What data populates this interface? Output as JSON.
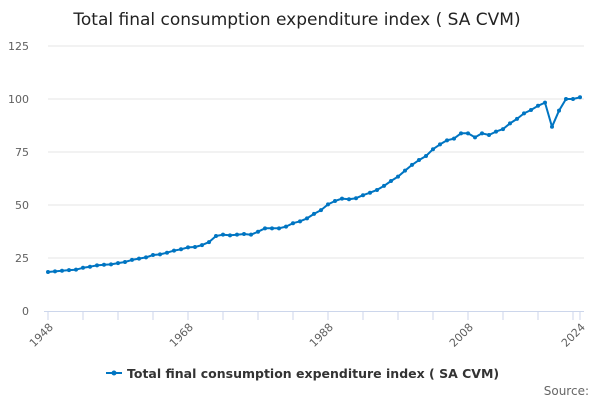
{
  "chart_data": {
    "type": "line",
    "title": "Total final consumption expenditure index ( SA CVM)",
    "xlabel": "",
    "ylabel": "",
    "ylim": [
      0,
      125
    ],
    "xlim": [
      1948,
      2024
    ],
    "yticks": [
      0,
      25,
      50,
      75,
      100,
      125
    ],
    "xtick_labels": [
      "1948",
      "1968",
      "1988",
      "2008",
      "2024"
    ],
    "grid": "horizontal",
    "legend_position": "bottom",
    "series_color": "#0075c2",
    "x": [
      1948,
      1949,
      1950,
      1951,
      1952,
      1953,
      1954,
      1955,
      1956,
      1957,
      1958,
      1959,
      1960,
      1961,
      1962,
      1963,
      1964,
      1965,
      1966,
      1967,
      1968,
      1969,
      1970,
      1971,
      1972,
      1973,
      1974,
      1975,
      1976,
      1977,
      1978,
      1979,
      1980,
      1981,
      1982,
      1983,
      1984,
      1985,
      1986,
      1987,
      1988,
      1989,
      1990,
      1991,
      1992,
      1993,
      1994,
      1995,
      1996,
      1997,
      1998,
      1999,
      2000,
      2001,
      2002,
      2003,
      2004,
      2005,
      2006,
      2007,
      2008,
      2009,
      2010,
      2011,
      2012,
      2013,
      2014,
      2015,
      2016,
      2017,
      2018,
      2019,
      2020,
      2021,
      2022,
      2023,
      2024
    ],
    "series": [
      {
        "name": "Total final consumption expenditure index ( SA CVM)",
        "values": [
          18.4,
          18.7,
          19.0,
          19.3,
          19.5,
          20.4,
          20.9,
          21.5,
          21.8,
          22.0,
          22.6,
          23.1,
          24.1,
          24.7,
          25.3,
          26.4,
          26.7,
          27.5,
          28.5,
          29.1,
          30.0,
          30.2,
          31.1,
          32.5,
          35.4,
          36.0,
          35.7,
          36.0,
          36.3,
          36.0,
          37.4,
          39.0,
          39.0,
          39.0,
          39.8,
          41.4,
          42.3,
          43.7,
          45.8,
          47.6,
          50.3,
          51.9,
          53.0,
          52.7,
          53.2,
          54.6,
          55.8,
          57.1,
          59.0,
          61.3,
          63.4,
          66.2,
          68.9,
          71.2,
          73.1,
          76.3,
          78.6,
          80.5,
          81.3,
          83.8,
          83.8,
          81.9,
          83.8,
          83.0,
          84.6,
          85.8,
          88.5,
          90.6,
          93.2,
          94.8,
          96.8,
          98.3,
          86.9,
          94.5,
          100.0,
          100.0,
          100.8
        ]
      }
    ]
  },
  "source_label": "Source:"
}
